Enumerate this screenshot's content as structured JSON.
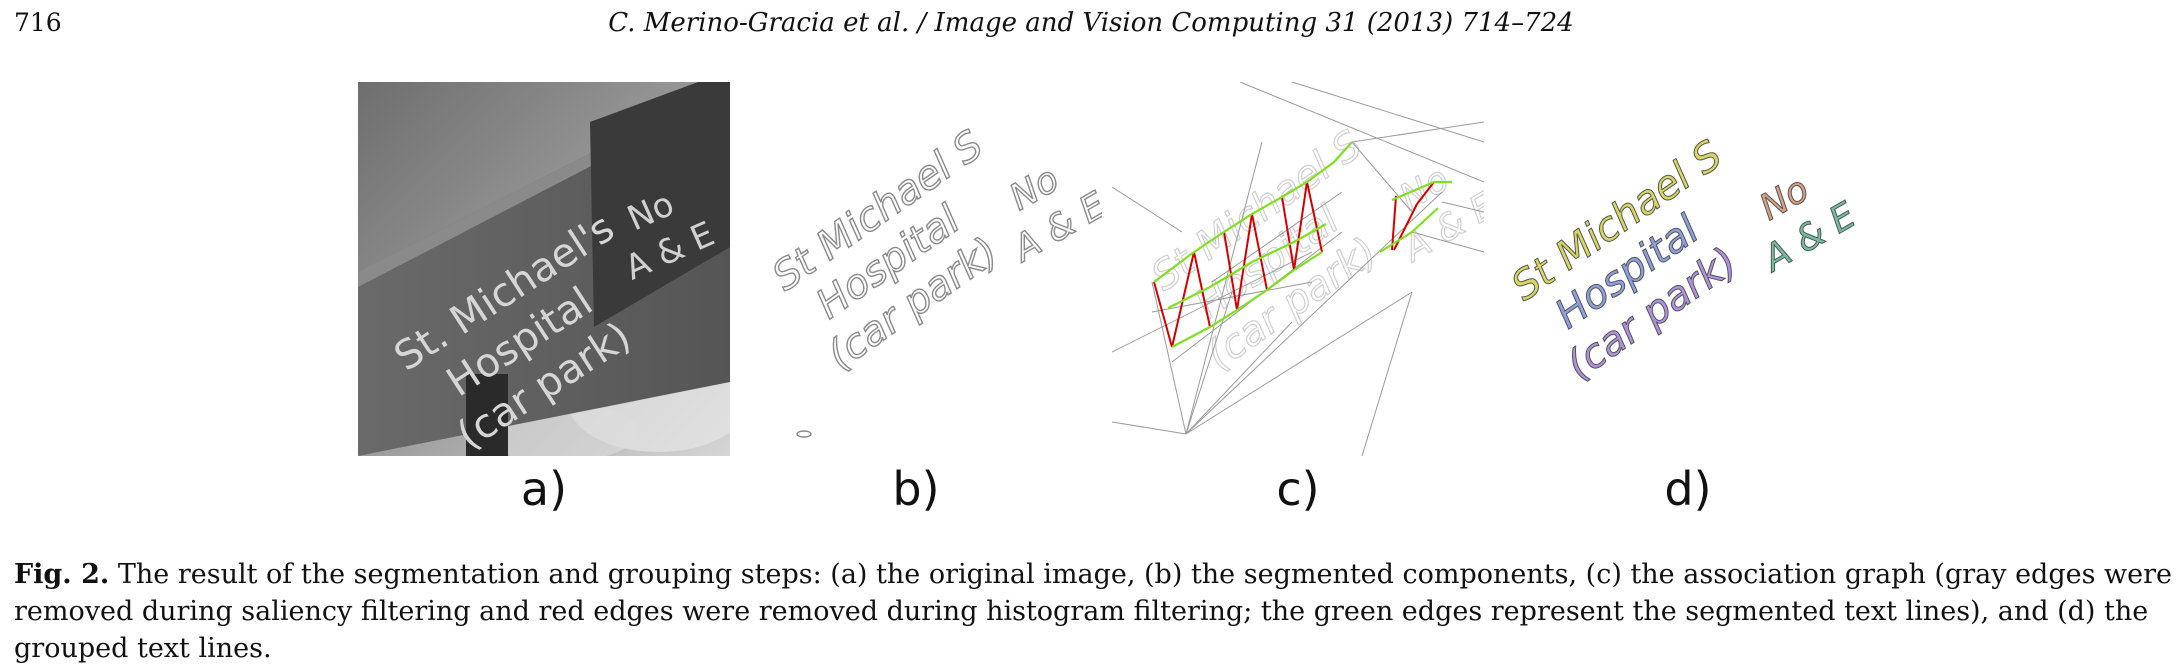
{
  "header": {
    "page_number": "716",
    "running_head": "C. Merino-Gracia et al. / Image and Vision Computing 31 (2013) 714–724"
  },
  "figure": {
    "panels": {
      "a": {
        "label": "a)",
        "sign_lines": [
          "St. Michael's",
          "Hospital",
          "(car park)"
        ],
        "sign_side": [
          "No",
          "A & E"
        ]
      },
      "b": {
        "label": "b)",
        "text_lines": [
          "St Michael S",
          "Hospital",
          "(car park)"
        ],
        "side_lines": [
          "No",
          "A & E"
        ]
      },
      "c": {
        "label": "c)"
      },
      "d": {
        "label": "d)",
        "text_lines": [
          "St Michael S",
          "Hospital",
          "(car park)"
        ],
        "side_lines": [
          "No",
          "A & E"
        ]
      }
    },
    "colors": {
      "removed_saliency": "#9a9a9a",
      "removed_histogram": "#d40000",
      "text_line": "#7fe020",
      "group_line1": "#d8d860",
      "group_line2": "#8aa0e0",
      "group_line3": "#b090e0",
      "group_no": "#d8a080",
      "group_ae": "#70c0a0"
    },
    "caption": {
      "label": "Fig. 2.",
      "text": " The result of the segmentation and grouping steps: (a) the original image, (b) the segmented components, (c) the association graph (gray edges were removed during saliency filtering and red edges were removed during histogram filtering; the green edges represent the segmented text lines), and (d) the grouped text lines."
    }
  }
}
